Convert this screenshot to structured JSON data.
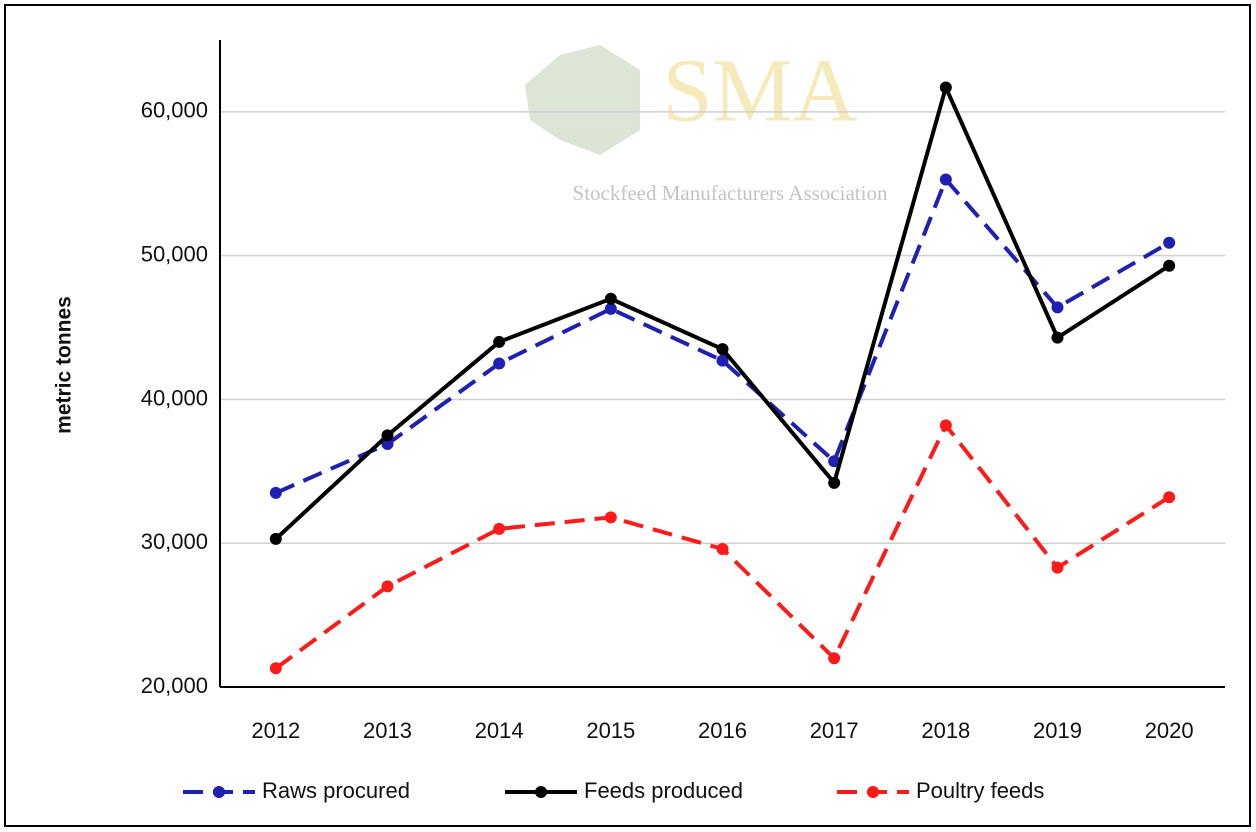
{
  "chart_data": {
    "type": "line",
    "watermark": {
      "title": "SMA",
      "subtitle": "Stockfeed Manufacturers Association"
    },
    "y_label": "metric tonnes",
    "categories": [
      "2012",
      "2013",
      "2014",
      "2015",
      "2016",
      "2017",
      "2018",
      "2019",
      "2020"
    ],
    "series": [
      {
        "name": "Raws procured",
        "color": "#1f1fb4",
        "style": "dashed",
        "values": [
          33500,
          36900,
          42500,
          46300,
          42700,
          35700,
          55300,
          46400,
          50900
        ]
      },
      {
        "name": "Feeds produced",
        "color": "#000000",
        "style": "solid",
        "values": [
          30300,
          37500,
          44000,
          47000,
          43500,
          34200,
          61700,
          44300,
          49300
        ]
      },
      {
        "name": "Poultry feeds",
        "color": "#ff1a1a",
        "style": "dashed",
        "values": [
          21300,
          27000,
          31000,
          31800,
          29600,
          22000,
          38200,
          28300,
          33200
        ]
      }
    ],
    "ylim": [
      20000,
      65000
    ],
    "yticks": [
      {
        "value": 20000,
        "label": "20,000"
      },
      {
        "value": 30000,
        "label": "30,000"
      },
      {
        "value": 40000,
        "label": "40,000"
      },
      {
        "value": 50000,
        "label": "50,000"
      },
      {
        "value": 60000,
        "label": "60,000"
      }
    ],
    "grid": true,
    "legend": "bottom"
  }
}
